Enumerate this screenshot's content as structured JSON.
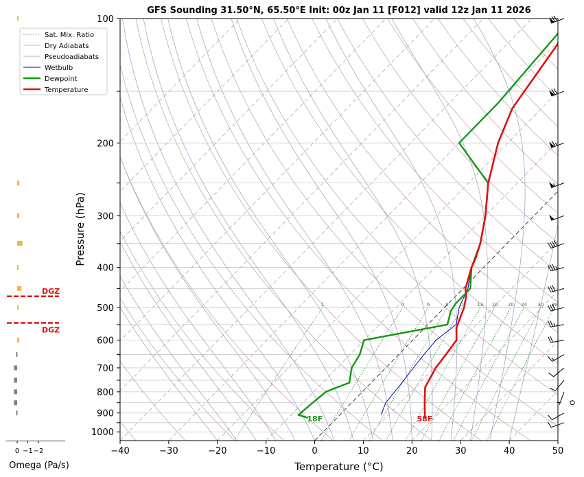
{
  "chart_data": {
    "type": "line",
    "title": "GFS Sounding 31.50°N, 65.50°E Init: 00z Jan 11 [F012] valid 12z Jan 11 2026",
    "xlabel": "Temperature (°C)",
    "ylabel": "Pressure (hPa)",
    "xlim": [
      -40,
      50
    ],
    "ylim": [
      1050,
      100
    ],
    "y_scale": "log",
    "grid": true,
    "x_ticks": [
      "−40",
      "−30",
      "−20",
      "−10",
      "0",
      "10",
      "20",
      "30",
      "40",
      "50"
    ],
    "y_ticks": [
      "100",
      "200",
      "300",
      "400",
      "500",
      "600",
      "700",
      "800",
      "900",
      "1000"
    ],
    "legend": {
      "placement": "top-left",
      "entries": [
        "Sat. Mix. Ratio",
        "Dry Adiabats",
        "Pseudoadiabats",
        "Wetbulb",
        "Dewpoint",
        "Temperature"
      ]
    },
    "colors": {
      "temperature": "#dd1111",
      "dewpoint": "#119911",
      "wetbulb": "#0000bb",
      "dry_adiabat": "#c79a9a",
      "pseudoadiabat": "#9a9ac7",
      "mixing_ratio": "#228822",
      "isotherm": "#aaaaaa",
      "omega_up": "#f0b840",
      "omega_down": "#808080",
      "dgz": "#dd1111"
    },
    "series": [
      {
        "name": "Temperature",
        "points": [
          [
            925,
            18
          ],
          [
            910,
            17.5
          ],
          [
            850,
            15
          ],
          [
            780,
            12
          ],
          [
            700,
            10.3
          ],
          [
            650,
            9.7
          ],
          [
            600,
            9
          ],
          [
            560,
            6.5
          ],
          [
            500,
            4
          ],
          [
            470,
            2.2
          ],
          [
            450,
            0.5
          ],
          [
            400,
            -2.5
          ],
          [
            380,
            -3.5
          ],
          [
            350,
            -5.5
          ],
          [
            300,
            -10
          ],
          [
            250,
            -16
          ],
          [
            200,
            -22
          ],
          [
            165,
            -26
          ],
          [
            100,
            -31
          ]
        ]
      },
      {
        "name": "Dewpoint",
        "points": [
          [
            925,
            -6
          ],
          [
            910,
            -8.5
          ],
          [
            850,
            -8
          ],
          [
            800,
            -7.5
          ],
          [
            760,
            -4.5
          ],
          [
            700,
            -7
          ],
          [
            650,
            -8
          ],
          [
            600,
            -10
          ],
          [
            550,
            4
          ],
          [
            510,
            2
          ],
          [
            490,
            1.5
          ],
          [
            450,
            1.5
          ],
          [
            400,
            -2.5
          ],
          [
            350,
            -5.5
          ],
          [
            300,
            -10
          ],
          [
            250,
            -16
          ],
          [
            200,
            -30
          ],
          [
            160,
            -30
          ],
          [
            100,
            -32
          ]
        ]
      },
      {
        "name": "Wetbulb",
        "points": [
          [
            910,
            8.5
          ],
          [
            850,
            7
          ],
          [
            780,
            6.5
          ],
          [
            700,
            5.7
          ],
          [
            650,
            5.2
          ],
          [
            600,
            4.8
          ],
          [
            550,
            5.8
          ],
          [
            500,
            3
          ],
          [
            450,
            1
          ],
          [
            400,
            -2.5
          ],
          [
            350,
            -5.5
          ],
          [
            300,
            -10
          ],
          [
            250,
            -16
          ],
          [
            200,
            -22
          ],
          [
            165,
            -26
          ],
          [
            100,
            -31
          ]
        ]
      }
    ],
    "mixing_ratio_labels": [
      "1",
      "4",
      "6",
      "8",
      "10",
      "13",
      "16",
      "20",
      "24",
      "30",
      "36"
    ],
    "surface_labels": {
      "temperature": "58F",
      "dewpoint": "18F"
    },
    "omega": {
      "xlabel": "Omega (Pa/s)",
      "ticks": [
        "0",
        "−1",
        "−2"
      ],
      "xlim": [
        0.2,
        -2
      ],
      "values": [
        [
          100,
          -0.05
        ],
        [
          250,
          -0.2
        ],
        [
          300,
          -0.2
        ],
        [
          350,
          -0.5
        ],
        [
          400,
          -0.1
        ],
        [
          450,
          -0.4
        ],
        [
          500,
          -0.1
        ],
        [
          600,
          -0.2
        ],
        [
          650,
          0.1
        ],
        [
          700,
          0.3
        ],
        [
          750,
          0.3
        ],
        [
          800,
          0.3
        ],
        [
          850,
          0.3
        ],
        [
          900,
          0.1
        ]
      ]
    },
    "dgz": {
      "label": "DGZ",
      "bounds": [
        470,
        545
      ]
    },
    "wind_barbs": [
      {
        "p": 100,
        "speed": 70,
        "dir": 250
      },
      {
        "p": 150,
        "speed": 70,
        "dir": 250
      },
      {
        "p": 200,
        "speed": 65,
        "dir": 250
      },
      {
        "p": 250,
        "speed": 55,
        "dir": 250
      },
      {
        "p": 300,
        "speed": 50,
        "dir": 250
      },
      {
        "p": 350,
        "speed": 40,
        "dir": 250
      },
      {
        "p": 400,
        "speed": 35,
        "dir": 255
      },
      {
        "p": 450,
        "speed": 30,
        "dir": 255
      },
      {
        "p": 500,
        "speed": 30,
        "dir": 255
      },
      {
        "p": 550,
        "speed": 25,
        "dir": 260
      },
      {
        "p": 600,
        "speed": 20,
        "dir": 260
      },
      {
        "p": 650,
        "speed": 15,
        "dir": 240
      },
      {
        "p": 700,
        "speed": 10,
        "dir": 230
      },
      {
        "p": 750,
        "speed": 10,
        "dir": 220
      },
      {
        "p": 800,
        "speed": 5,
        "dir": 200
      },
      {
        "p": 850,
        "speed": 0,
        "dir": 0
      },
      {
        "p": 900,
        "speed": 10,
        "dir": 240
      },
      {
        "p": 950,
        "speed": 10,
        "dir": 250
      }
    ]
  }
}
